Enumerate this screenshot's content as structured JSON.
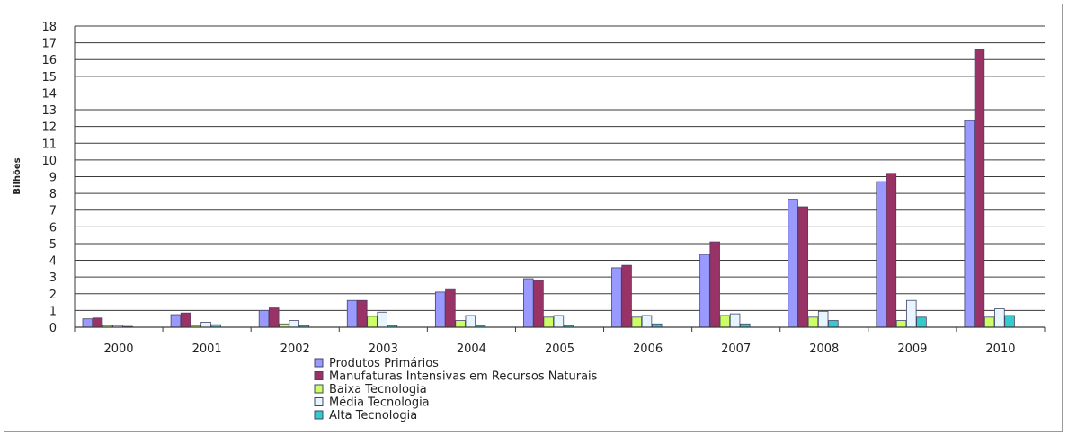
{
  "chart_data": {
    "type": "bar",
    "ylabel": "Bilhões",
    "ylim": [
      0,
      18
    ],
    "yticks": [
      0,
      1,
      2,
      3,
      4,
      5,
      6,
      7,
      8,
      9,
      10,
      11,
      12,
      13,
      14,
      15,
      16,
      17,
      18
    ],
    "grid": true,
    "legend_position": "bottom",
    "categories": [
      "2000",
      "2001",
      "2002",
      "2003",
      "2004",
      "2005",
      "2006",
      "2007",
      "2008",
      "2009",
      "2010"
    ],
    "series": [
      {
        "name": "Produtos Primários",
        "color": "#9999ff",
        "values": [
          0.5,
          0.75,
          1.0,
          1.6,
          2.1,
          2.9,
          3.55,
          4.35,
          7.65,
          8.7,
          12.35
        ]
      },
      {
        "name": "Manufaturas Intensivas em Recursos Naturais",
        "color": "#993366",
        "values": [
          0.55,
          0.85,
          1.15,
          1.6,
          2.3,
          2.8,
          3.7,
          5.1,
          7.2,
          9.2,
          16.6
        ]
      },
      {
        "name": "Baixa Tecnologia",
        "color": "#ccff66",
        "values": [
          0.1,
          0.1,
          0.2,
          0.65,
          0.4,
          0.6,
          0.6,
          0.7,
          0.6,
          0.4,
          0.6
        ]
      },
      {
        "name": "Média Tecnologia",
        "color": "#e6f5ff",
        "values": [
          0.1,
          0.3,
          0.4,
          0.9,
          0.7,
          0.7,
          0.7,
          0.8,
          0.95,
          1.6,
          1.1
        ]
      },
      {
        "name": "Alta Tecnologia",
        "color": "#33cccc",
        "values": [
          0.05,
          0.15,
          0.1,
          0.1,
          0.1,
          0.1,
          0.2,
          0.2,
          0.4,
          0.6,
          0.7
        ]
      }
    ]
  }
}
